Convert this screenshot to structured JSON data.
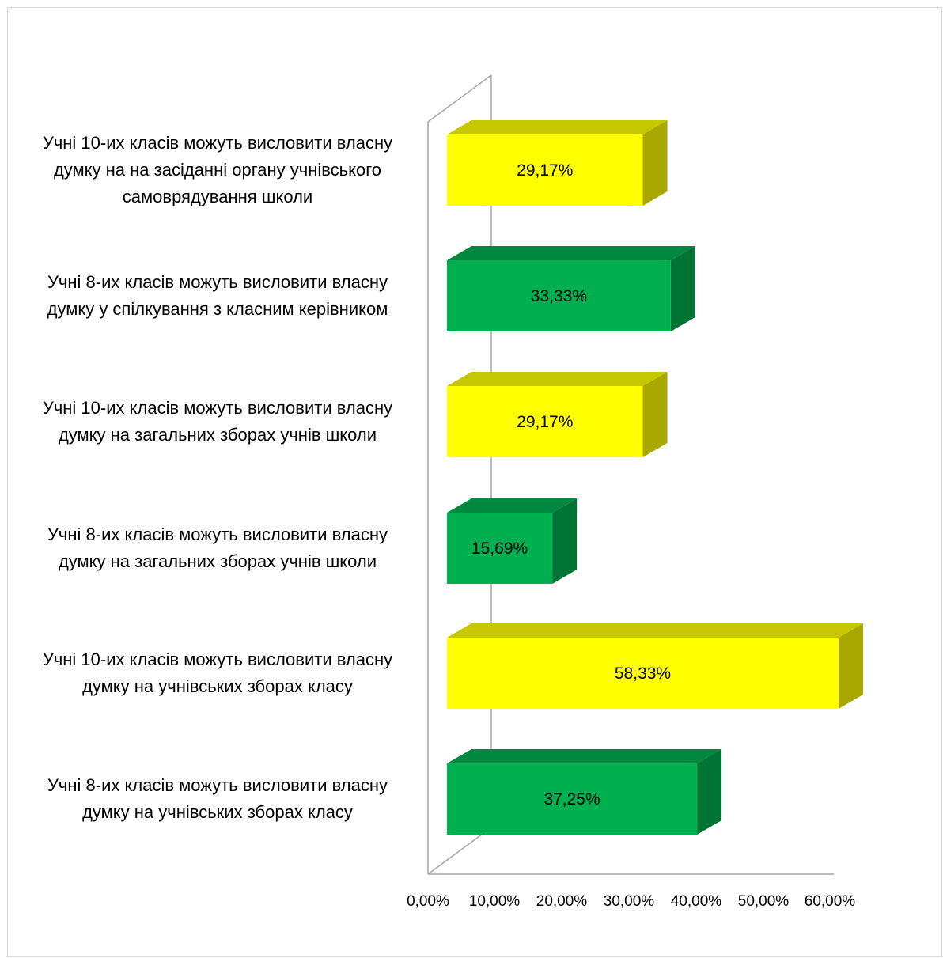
{
  "chart_data": {
    "type": "bar",
    "orientation": "horizontal",
    "three_d": true,
    "categories": [
      "Учні 10-их класів можуть висловити власну думку на на засіданні органу учнівського самоврядування школи",
      "Учні 8-их класів можуть висловити власну думку у спілкування з класним керівником",
      "Учні 10-их класів можуть висловити власну думку на загальних зборах учнів школи",
      "Учні 8-их класів можуть висловити власну думку на загальних зборах учнів школи",
      "Учні 10-их класів можуть висловити власну думку на учнівських зборах класу",
      "Учні 8-их класів можуть висловити власну думку на учнівських зборах класу"
    ],
    "category_lines": [
      [
        "Учні 10-их класів можуть висловити власну",
        "думку на на засіданні органу учнівського",
        "самоврядування школи"
      ],
      [
        "Учні 8-их класів можуть висловити власну",
        "думку у спілкування з класним керівником"
      ],
      [
        "Учні 10-их класів можуть висловити власну",
        "думку на загальних зборах учнів школи"
      ],
      [
        "Учні 8-их класів можуть висловити власну",
        "думку на загальних зборах учнів школи"
      ],
      [
        "Учні 10-их класів можуть висловити власну",
        "думку на учнівських зборах класу"
      ],
      [
        "Учні 8-их класів можуть висловити власну",
        "думку на учнівських зборах класу"
      ]
    ],
    "values": [
      29.17,
      33.33,
      29.17,
      15.69,
      58.33,
      37.25
    ],
    "data_labels": [
      "29,17%",
      "33,33%",
      "29,17%",
      "15,69%",
      "58,33%",
      "37,25%"
    ],
    "bar_colors": [
      "#ffff00",
      "#00b050",
      "#ffff00",
      "#00b050",
      "#ffff00",
      "#00b050"
    ],
    "x_ticks": [
      "0,00%",
      "10,00%",
      "20,00%",
      "30,00%",
      "40,00%",
      "50,00%",
      "60,00%"
    ],
    "xlim": [
      0,
      60
    ],
    "title": "",
    "xlabel": "",
    "ylabel": "",
    "grid": false,
    "legend": "none"
  }
}
